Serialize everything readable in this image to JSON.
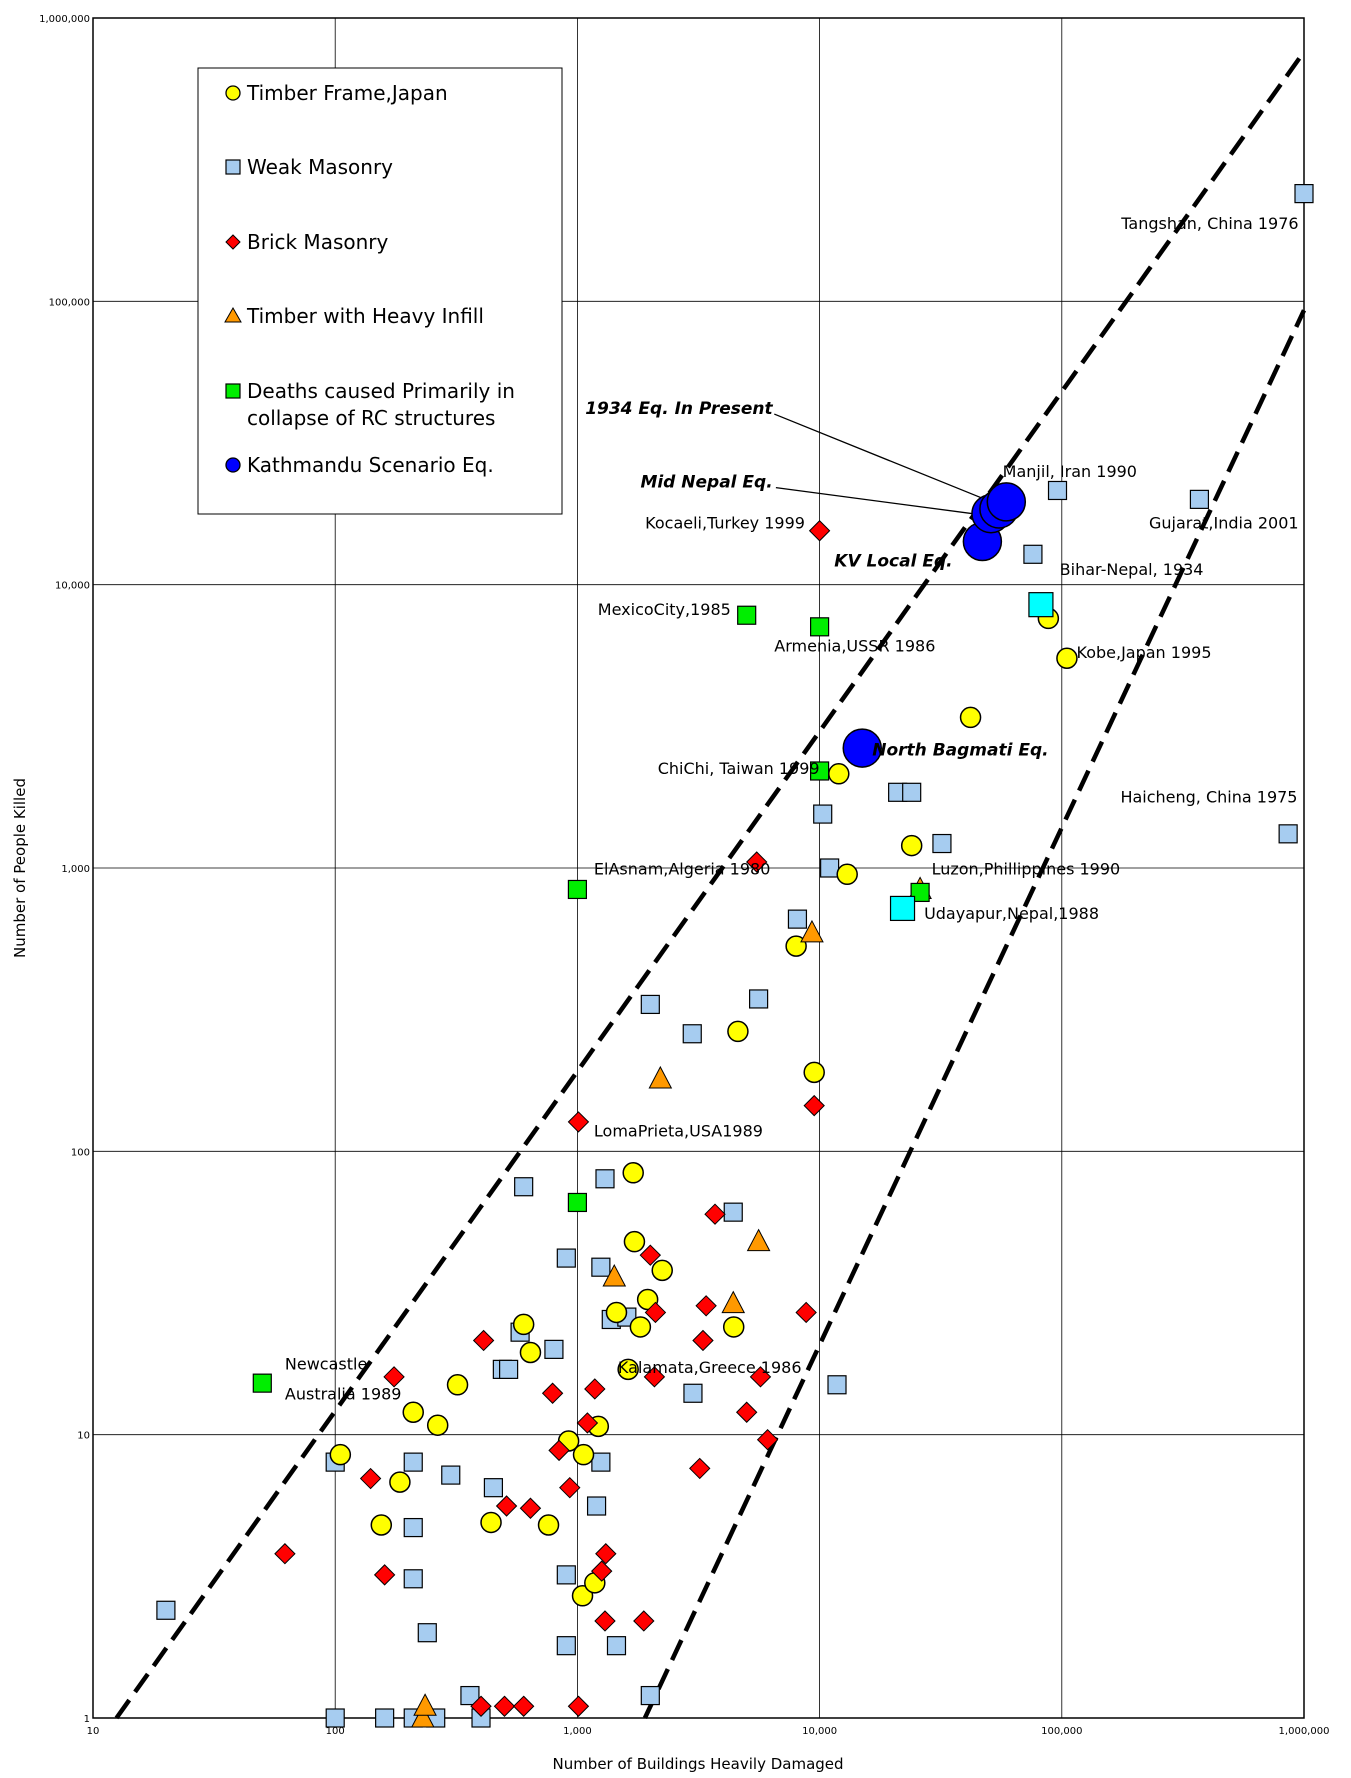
{
  "chart_data": {
    "type": "scatter",
    "title": "",
    "xlabel": "Number of Buildings Heavily Damaged",
    "ylabel": "Number of People Killed",
    "x_scale": "log",
    "y_scale": "log",
    "xlim": [
      10,
      1000000
    ],
    "ylim": [
      1,
      1000000
    ],
    "grid": true,
    "legend_position": "top-left",
    "x_ticks": [
      {
        "value": 10,
        "label": "10"
      },
      {
        "value": 100,
        "label": "100"
      },
      {
        "value": 1000,
        "label": "1,000"
      },
      {
        "value": 10000,
        "label": "10,000"
      },
      {
        "value": 100000,
        "label": "100,000"
      },
      {
        "value": 1000000,
        "label": "1,000,000"
      }
    ],
    "y_ticks": [
      {
        "value": 1,
        "label": "1"
      },
      {
        "value": 10,
        "label": "10"
      },
      {
        "value": 100,
        "label": "100"
      },
      {
        "value": 1000,
        "label": "1,000"
      },
      {
        "value": 10000,
        "label": "10,000"
      },
      {
        "value": 100000,
        "label": "100,000"
      },
      {
        "value": 1000000,
        "label": "1,000,000"
      }
    ],
    "bound_lines": [
      {
        "points": [
          [
            12.5,
            1
          ],
          [
            1000000,
            760000
          ]
        ]
      },
      {
        "points": [
          [
            1900,
            1
          ],
          [
            1000000,
            93000
          ]
        ]
      }
    ],
    "series": [
      {
        "name": "Timber Frame,Japan",
        "marker": "circle",
        "color": "#ffff00",
        "points": [
          [
            105,
            8.5
          ],
          [
            155,
            4.8
          ],
          [
            185,
            6.8
          ],
          [
            210,
            12
          ],
          [
            265,
            10.8
          ],
          [
            320,
            15
          ],
          [
            440,
            4.9
          ],
          [
            600,
            24.5
          ],
          [
            640,
            19.5
          ],
          [
            760,
            4.8
          ],
          [
            920,
            9.5
          ],
          [
            1060,
            8.5
          ],
          [
            1050,
            2.7
          ],
          [
            1220,
            10.7
          ],
          [
            1180,
            3
          ],
          [
            1450,
            27
          ],
          [
            1700,
            84
          ],
          [
            1720,
            48
          ],
          [
            1950,
            30
          ],
          [
            2240,
            38
          ],
          [
            1820,
            24
          ],
          [
            4420,
            24
          ],
          [
            4600,
            265
          ],
          [
            8000,
            530
          ],
          [
            9500,
            190
          ],
          [
            12000,
            2150
          ],
          [
            13000,
            950
          ],
          [
            24000,
            1200
          ],
          [
            42000,
            3400
          ],
          [
            88000,
            7600
          ],
          [
            105000,
            5500
          ],
          [
            1620,
            17
          ]
        ]
      },
      {
        "name": "Weak Masonry",
        "marker": "square",
        "color": "#a6ccf0",
        "points": [
          [
            20,
            2.4
          ],
          [
            100,
            1
          ],
          [
            100,
            8
          ],
          [
            160,
            1
          ],
          [
            210,
            1
          ],
          [
            210,
            8
          ],
          [
            210,
            4.7
          ],
          [
            210,
            3.1
          ],
          [
            240,
            2
          ],
          [
            260,
            1
          ],
          [
            300,
            7.2
          ],
          [
            360,
            1.2
          ],
          [
            400,
            1
          ],
          [
            450,
            6.5
          ],
          [
            490,
            17
          ],
          [
            520,
            17
          ],
          [
            580,
            23
          ],
          [
            600,
            75
          ],
          [
            800,
            20
          ],
          [
            900,
            42
          ],
          [
            900,
            3.2
          ],
          [
            900,
            1.8
          ],
          [
            1250,
            39
          ],
          [
            1300,
            80
          ],
          [
            1250,
            8
          ],
          [
            1200,
            5.6
          ],
          [
            1380,
            25.5
          ],
          [
            1600,
            26
          ],
          [
            1450,
            1.8
          ],
          [
            2000,
            330
          ],
          [
            2000,
            1.2
          ],
          [
            2980,
            260
          ],
          [
            3000,
            14
          ],
          [
            4400,
            61
          ],
          [
            5600,
            345
          ],
          [
            8100,
            660
          ],
          [
            10300,
            1550
          ],
          [
            11000,
            1000
          ],
          [
            11800,
            15
          ],
          [
            21000,
            1850
          ],
          [
            24000,
            1850
          ],
          [
            32000,
            1220
          ],
          [
            76000,
            12800
          ],
          [
            96000,
            21500
          ],
          [
            370000,
            20000
          ],
          [
            860000,
            1320
          ],
          [
            1000000,
            240000
          ]
        ]
      },
      {
        "name": "Brick Masonry",
        "marker": "diamond",
        "color": "#ff0000",
        "points": [
          [
            62,
            3.8
          ],
          [
            140,
            7
          ],
          [
            160,
            3.2
          ],
          [
            175,
            16
          ],
          [
            410,
            21.5
          ],
          [
            510,
            5.6
          ],
          [
            400,
            1.1
          ],
          [
            500,
            1.1
          ],
          [
            600,
            1.1
          ],
          [
            640,
            5.5
          ],
          [
            790,
            14
          ],
          [
            840,
            8.8
          ],
          [
            930,
            6.5
          ],
          [
            1010,
            127
          ],
          [
            1010,
            1.1
          ],
          [
            1100,
            11
          ],
          [
            1180,
            14.5
          ],
          [
            1260,
            3.3
          ],
          [
            1310,
            3.8
          ],
          [
            1300,
            2.2
          ],
          [
            1880,
            2.2
          ],
          [
            2000,
            43
          ],
          [
            2080,
            16
          ],
          [
            2100,
            27
          ],
          [
            3200,
            7.6
          ],
          [
            3300,
            21.5
          ],
          [
            3400,
            28.5
          ],
          [
            3700,
            60
          ],
          [
            5000,
            12
          ],
          [
            5500,
            1050
          ],
          [
            5700,
            16
          ],
          [
            6100,
            9.6
          ],
          [
            8800,
            27
          ],
          [
            9500,
            145
          ],
          [
            10000,
            15500
          ]
        ]
      },
      {
        "name": "Timber with Heavy Infill",
        "marker": "triangle",
        "color": "#ff9900",
        "points": [
          [
            230,
            1
          ],
          [
            235,
            1.1
          ],
          [
            1420,
            36
          ],
          [
            2200,
            180
          ],
          [
            4400,
            29
          ],
          [
            5600,
            48
          ],
          [
            9300,
            590
          ],
          [
            26000,
            840
          ]
        ]
      },
      {
        "name": "Deaths caused Primarily in collapse of RC structures",
        "marker": "square",
        "color": "#00ee00",
        "points": [
          [
            50,
            15.2
          ],
          [
            1000,
            66
          ],
          [
            1000,
            840
          ],
          [
            5000,
            7800
          ],
          [
            10000,
            7100
          ],
          [
            10000,
            2200
          ],
          [
            26000,
            820
          ]
        ]
      },
      {
        "name": "Kathmandu Scenario Eq.",
        "marker": "circle-large",
        "color": "#0000ff",
        "points": [
          [
            15000,
            2650
          ],
          [
            47000,
            14200
          ],
          [
            51000,
            17800
          ],
          [
            55000,
            18500
          ],
          [
            59000,
            19600
          ]
        ]
      },
      {
        "name": "",
        "marker": "square-large",
        "color": "#00ffff",
        "points": [
          [
            22000,
            720
          ],
          [
            82000,
            8500
          ]
        ]
      }
    ],
    "annotations": [
      {
        "text": "Tangshan, China 1976",
        "x": 950000,
        "y": 180000,
        "anchor": "end",
        "style": "normal"
      },
      {
        "text": "Manjil, Iran 1990",
        "x": 57000,
        "y": 24000,
        "anchor": "start",
        "style": "normal"
      },
      {
        "text": "Gujarat,India 2001",
        "x": 950000,
        "y": 15800,
        "anchor": "end",
        "style": "normal"
      },
      {
        "text": "Kocaeli,Turkey 1999",
        "x": 8700,
        "y": 15800,
        "anchor": "end",
        "style": "normal"
      },
      {
        "text": "Bihar-Nepal, 1934",
        "x": 98000,
        "y": 10800,
        "anchor": "start",
        "style": "normal"
      },
      {
        "text": "MexicoCity,1985",
        "x": 4300,
        "y": 7800,
        "anchor": "end",
        "style": "normal"
      },
      {
        "text": "Armenia,USSR 1986",
        "x": 6500,
        "y": 5800,
        "anchor": "start",
        "style": "normal"
      },
      {
        "text": "Kobe,Japan 1995",
        "x": 115000,
        "y": 5500,
        "anchor": "start",
        "style": "normal"
      },
      {
        "text": "ChiChi, Taiwan 1999",
        "x": 10000,
        "y": 2150,
        "anchor": "end",
        "style": "normal"
      },
      {
        "text": "Haicheng, China 1975",
        "x": 940000,
        "y": 1700,
        "anchor": "end",
        "style": "normal"
      },
      {
        "text": "ElAsnam,Algeria 1980",
        "x": 1170,
        "y": 950,
        "anchor": "start",
        "style": "normal"
      },
      {
        "text": "Luzon,Phillippines 1990",
        "x": 29000,
        "y": 950,
        "anchor": "start",
        "style": "normal"
      },
      {
        "text": "Udayapur,Nepal,1988",
        "x": 27000,
        "y": 660,
        "anchor": "start",
        "style": "normal"
      },
      {
        "text": "LomaPrieta,USA1989",
        "x": 1170,
        "y": 113,
        "anchor": "start",
        "style": "normal"
      },
      {
        "text": "Kalamata,Greece 1986",
        "x": 1470,
        "y": 16.5,
        "anchor": "start",
        "style": "normal"
      },
      {
        "text": "Newcastle",
        "x": 62,
        "y": 17,
        "anchor": "start",
        "style": "normal"
      },
      {
        "text": "Australia 1989",
        "x": 62,
        "y": 13.3,
        "anchor": "start",
        "style": "normal"
      },
      {
        "text": "1934 Eq. In Present",
        "x": 6400,
        "y": 40000,
        "anchor": "end",
        "style": "bold"
      },
      {
        "text": "Mid Nepal Eq.",
        "x": 6400,
        "y": 22000,
        "anchor": "end",
        "style": "bold"
      },
      {
        "text": "KV Local Eq.",
        "x": 11500,
        "y": 11600,
        "anchor": "start",
        "style": "bold"
      },
      {
        "text": "North Bagmati Eq.",
        "x": 16500,
        "y": 2500,
        "anchor": "start",
        "style": "bold"
      }
    ],
    "leader_lines": [
      {
        "from": [
          6500,
          40000
        ],
        "to": [
          56000,
          19000
        ]
      },
      {
        "from": [
          6600,
          22000
        ],
        "to": [
          50000,
          17500
        ]
      }
    ]
  }
}
